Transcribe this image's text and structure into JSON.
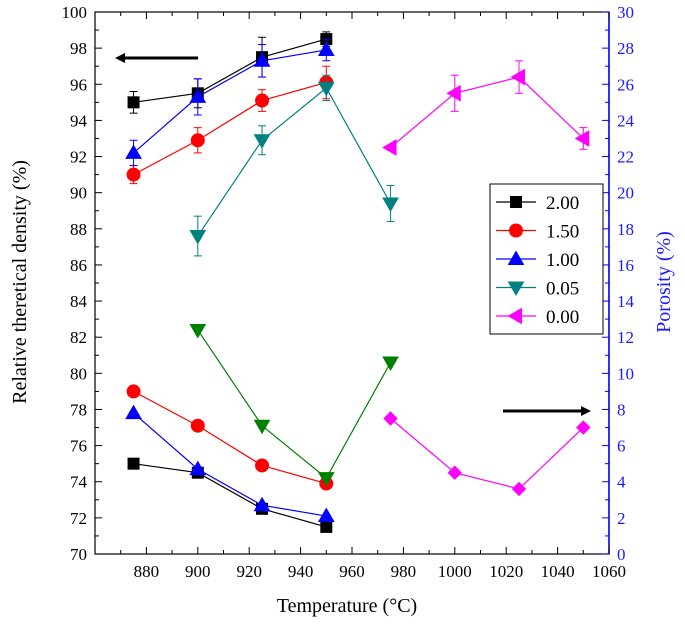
{
  "chart_data": {
    "type": "line",
    "xlabel": "Temperature (°C)",
    "ylabel_left": "Relative theretical density (%)",
    "ylabel_right": "Porosity (%)",
    "xlim": [
      860,
      1060
    ],
    "ylim_left": [
      70,
      100
    ],
    "ylim_right": [
      0,
      30
    ],
    "x_ticks": [
      "880",
      "900",
      "920",
      "940",
      "960",
      "980",
      "1000",
      "1020",
      "1040",
      "1060"
    ],
    "y_left_ticks": [
      "70",
      "72",
      "74",
      "76",
      "78",
      "80",
      "82",
      "84",
      "86",
      "88",
      "90",
      "92",
      "94",
      "96",
      "98",
      "100"
    ],
    "y_right_ticks": [
      "0",
      "2",
      "4",
      "6",
      "8",
      "10",
      "12",
      "14",
      "16",
      "18",
      "20",
      "22",
      "24",
      "26",
      "28",
      "30"
    ],
    "series": [
      {
        "name": "2.00",
        "color": "#000000",
        "marker": "square",
        "density": {
          "x": [
            875,
            900,
            925,
            950
          ],
          "y": [
            95.0,
            95.5,
            97.5,
            98.5
          ],
          "err": [
            0.6,
            0.8,
            1.1,
            0.4
          ]
        },
        "porosity": {
          "x": [
            875,
            900,
            925,
            950
          ],
          "y": [
            5.0,
            4.5,
            2.5,
            1.5
          ]
        }
      },
      {
        "name": "1.50",
        "color": "#ff0000",
        "marker": "circle",
        "density": {
          "x": [
            875,
            900,
            925,
            950
          ],
          "y": [
            91.0,
            92.9,
            95.1,
            96.1
          ],
          "err": [
            0.5,
            0.7,
            0.6,
            0.9
          ]
        },
        "porosity": {
          "x": [
            875,
            900,
            925,
            950
          ],
          "y": [
            9.0,
            7.1,
            4.9,
            3.9
          ]
        }
      },
      {
        "name": "1.00",
        "color": "#0000ff",
        "marker": "triangle-up",
        "density": {
          "x": [
            875,
            900,
            925,
            950
          ],
          "y": [
            92.2,
            95.3,
            97.3,
            97.9
          ],
          "err": [
            0.7,
            1.0,
            0.9,
            0.6
          ]
        },
        "porosity": {
          "x": [
            875,
            900,
            925,
            950
          ],
          "y": [
            7.8,
            4.7,
            2.7,
            2.1
          ]
        }
      },
      {
        "name": "0.05",
        "color": "#008080",
        "porosity_color": "#008000",
        "marker": "triangle-down",
        "density": {
          "x": [
            900,
            925,
            950,
            975
          ],
          "y": [
            87.6,
            92.9,
            95.8,
            89.4
          ],
          "err": [
            1.1,
            0.8,
            0.7,
            1.0
          ]
        },
        "porosity": {
          "x": [
            900,
            925,
            950,
            975
          ],
          "y": [
            12.4,
            7.1,
            4.2,
            10.6
          ]
        }
      },
      {
        "name": "0.00",
        "color": "#ff00ff",
        "marker": "triangle-left",
        "density": {
          "x": [
            975,
            1000,
            1025,
            1050
          ],
          "y": [
            92.5,
            95.5,
            96.4,
            93.0
          ],
          "err": [
            0,
            1.0,
            0.9,
            0.6
          ]
        },
        "porosity": {
          "x": [
            975,
            1000,
            1025,
            1050
          ],
          "y": [
            7.5,
            4.5,
            3.6,
            7.0
          ]
        }
      }
    ]
  }
}
